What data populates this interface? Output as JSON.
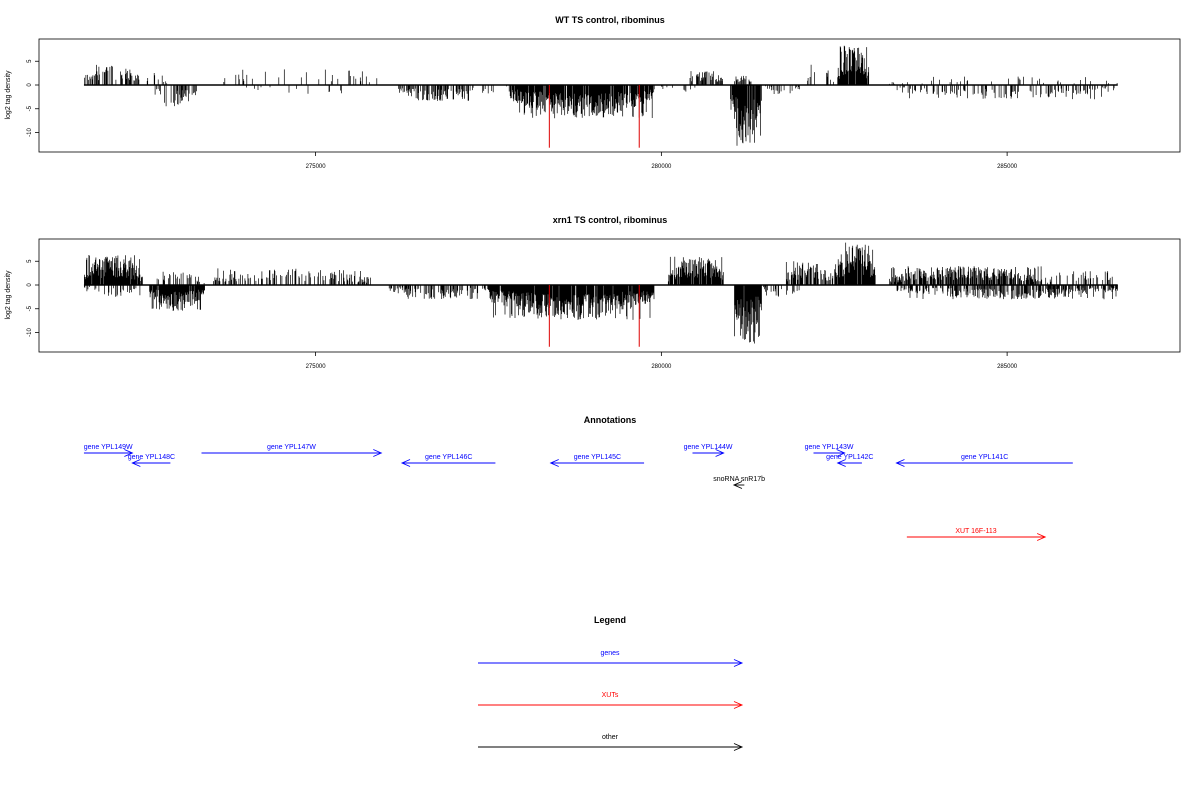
{
  "chart_data": [
    {
      "type": "bar",
      "title": "WT TS control, ribominus",
      "ylabel": "log2 tag density",
      "xlim": [
        271000,
        287500
      ],
      "ylim": [
        -14,
        10
      ],
      "xticks": [
        275000,
        280000,
        285000
      ],
      "yticks": [
        -10,
        -5,
        0,
        5
      ],
      "ytick_labels": [
        "-10",
        "-5",
        "0",
        "5"
      ],
      "grid": false,
      "highlight_color": "#dd0000",
      "highlight": [
        {
          "x": 278380,
          "y": -13.2
        },
        {
          "x": 279680,
          "y": -13.2
        }
      ],
      "regions": [
        {
          "start": 271650,
          "end": 272450,
          "strand": "+",
          "max": 4.5,
          "density": 0.45
        },
        {
          "start": 272550,
          "end": 272850,
          "strand": "+",
          "max": 2.8,
          "density": 0.2
        },
        {
          "start": 272650,
          "end": 273300,
          "strand": "-",
          "max": 4.5,
          "density": 0.45
        },
        {
          "start": 273600,
          "end": 276000,
          "strand": "+",
          "max": 3.5,
          "density": 0.08
        },
        {
          "start": 274000,
          "end": 275500,
          "strand": "-",
          "max": 2.0,
          "density": 0.05
        },
        {
          "start": 276200,
          "end": 277300,
          "strand": "-",
          "max": 3.5,
          "density": 0.5
        },
        {
          "start": 277300,
          "end": 277800,
          "strand": "-",
          "max": 2.0,
          "density": 0.2
        },
        {
          "start": 277800,
          "end": 279900,
          "strand": "-",
          "max": 7.0,
          "density": 0.9
        },
        {
          "start": 280000,
          "end": 280500,
          "strand": "-",
          "max": 2.0,
          "density": 0.15
        },
        {
          "start": 280400,
          "end": 280900,
          "strand": "+",
          "max": 3.0,
          "density": 0.6
        },
        {
          "start": 281050,
          "end": 281300,
          "strand": "+",
          "max": 2.0,
          "density": 0.5
        },
        {
          "start": 281000,
          "end": 281450,
          "strand": "-",
          "max": 13.0,
          "density": 0.95
        },
        {
          "start": 281500,
          "end": 282000,
          "strand": "-",
          "max": 2.0,
          "density": 0.25
        },
        {
          "start": 282100,
          "end": 282500,
          "strand": "+",
          "max": 5.0,
          "density": 0.3
        },
        {
          "start": 282550,
          "end": 283000,
          "strand": "+",
          "max": 8.5,
          "density": 0.95
        },
        {
          "start": 283300,
          "end": 286600,
          "strand": "-",
          "max": 3.0,
          "density": 0.25
        },
        {
          "start": 283300,
          "end": 286600,
          "strand": "+",
          "max": 1.8,
          "density": 0.06
        }
      ]
    },
    {
      "type": "bar",
      "title": "xrn1 TS control, ribominus",
      "ylabel": "log2 tag density",
      "xlim": [
        271000,
        287500
      ],
      "ylim": [
        -14,
        10
      ],
      "xticks": [
        275000,
        280000,
        285000
      ],
      "yticks": [
        -10,
        -5,
        0,
        5
      ],
      "ytick_labels": [
        "-10",
        "-5",
        "0",
        "5"
      ],
      "grid": false,
      "highlight_color": "#dd0000",
      "highlight": [
        {
          "x": 278380,
          "y": -13.0
        },
        {
          "x": 279680,
          "y": -13.0
        }
      ],
      "regions": [
        {
          "start": 271650,
          "end": 272500,
          "strand": "+",
          "max": 6.5,
          "density": 0.95
        },
        {
          "start": 271650,
          "end": 272500,
          "strand": "-",
          "max": 2.5,
          "density": 0.2
        },
        {
          "start": 272600,
          "end": 273400,
          "strand": "-",
          "max": 5.5,
          "density": 0.9
        },
        {
          "start": 272700,
          "end": 273400,
          "strand": "+",
          "max": 3.0,
          "density": 0.3
        },
        {
          "start": 273500,
          "end": 275800,
          "strand": "+",
          "max": 3.5,
          "density": 0.35
        },
        {
          "start": 276050,
          "end": 277500,
          "strand": "-",
          "max": 3.0,
          "density": 0.4
        },
        {
          "start": 277500,
          "end": 279900,
          "strand": "-",
          "max": 7.5,
          "density": 0.95
        },
        {
          "start": 280100,
          "end": 280900,
          "strand": "+",
          "max": 6.0,
          "density": 0.9
        },
        {
          "start": 281050,
          "end": 281450,
          "strand": "-",
          "max": 12.5,
          "density": 0.95
        },
        {
          "start": 281450,
          "end": 282000,
          "strand": "-",
          "max": 2.5,
          "density": 0.3
        },
        {
          "start": 281800,
          "end": 282500,
          "strand": "+",
          "max": 5.0,
          "density": 0.6
        },
        {
          "start": 282500,
          "end": 283100,
          "strand": "+",
          "max": 9.0,
          "density": 0.95
        },
        {
          "start": 283300,
          "end": 285500,
          "strand": "+",
          "max": 4.0,
          "density": 0.7
        },
        {
          "start": 283400,
          "end": 286600,
          "strand": "-",
          "max": 3.0,
          "density": 0.5
        },
        {
          "start": 285500,
          "end": 286600,
          "strand": "+",
          "max": 3.0,
          "density": 0.25
        }
      ]
    }
  ],
  "annotations": {
    "title": "Annotations",
    "xlim": [
      271000,
      287500
    ],
    "features": [
      {
        "label": "gene YPL149W",
        "start": 271650,
        "end": 272350,
        "strand": "+",
        "row": 0,
        "color": "#0000ff"
      },
      {
        "label": "gene YPL148C",
        "start": 272350,
        "end": 272900,
        "strand": "-",
        "row": 1,
        "color": "#0000ff"
      },
      {
        "label": "gene YPL147W",
        "start": 273350,
        "end": 275950,
        "strand": "+",
        "row": 0,
        "color": "#0000ff"
      },
      {
        "label": "gene YPL146C",
        "start": 276250,
        "end": 277600,
        "strand": "-",
        "row": 1,
        "color": "#0000ff"
      },
      {
        "label": "gene YPL145C",
        "start": 278400,
        "end": 279750,
        "strand": "-",
        "row": 1,
        "color": "#0000ff"
      },
      {
        "label": "gene YPL144W",
        "start": 280450,
        "end": 280900,
        "strand": "+",
        "row": 0,
        "color": "#0000ff"
      },
      {
        "label": "snoRNA snR17b",
        "start": 281050,
        "end": 281200,
        "strand": "-",
        "row": 2,
        "color": "#000000"
      },
      {
        "label": "gene YPL143W",
        "start": 282200,
        "end": 282650,
        "strand": "+",
        "row": 0,
        "color": "#0000ff"
      },
      {
        "label": "gene YPL142C",
        "start": 282550,
        "end": 282900,
        "strand": "-",
        "row": 1,
        "color": "#0000ff"
      },
      {
        "label": "gene YPL141C",
        "start": 283400,
        "end": 285950,
        "strand": "-",
        "row": 1,
        "color": "#0000ff"
      },
      {
        "label": "XUT 16F-113",
        "start": 283550,
        "end": 285550,
        "strand": "+",
        "row": 4,
        "color": "#ff0000"
      }
    ]
  },
  "legend": {
    "title": "Legend",
    "items": [
      {
        "label": "genes",
        "color": "#0000ff"
      },
      {
        "label": "XUTs",
        "color": "#ff0000"
      },
      {
        "label": "other",
        "color": "#000000"
      }
    ]
  }
}
